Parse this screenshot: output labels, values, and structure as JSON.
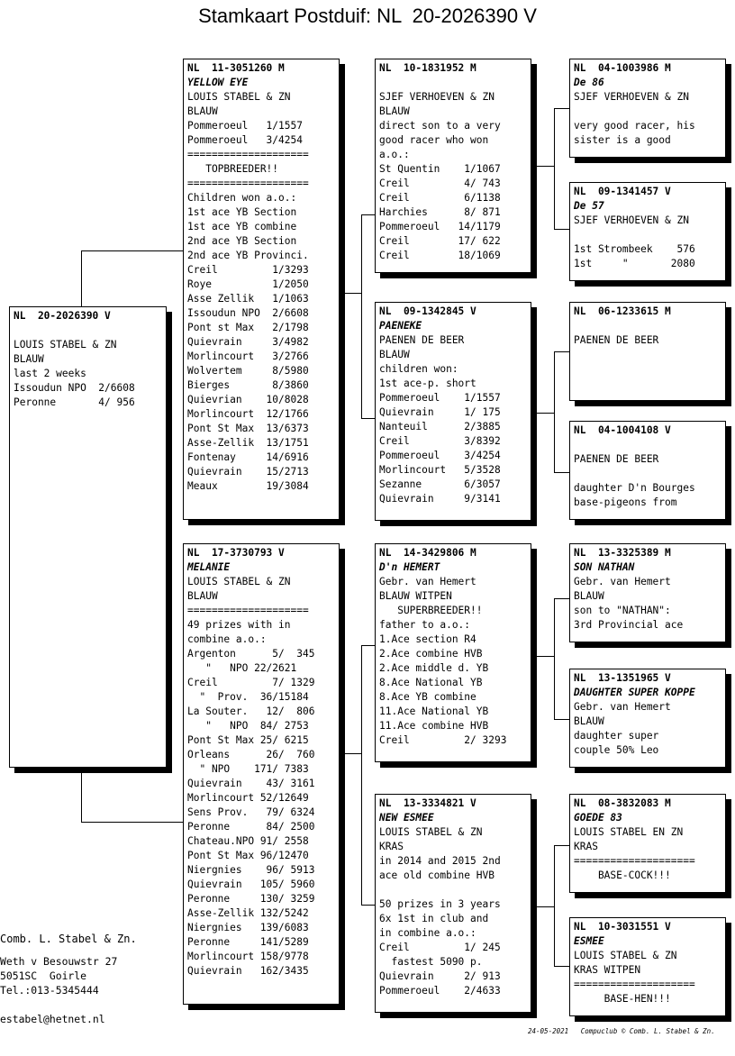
{
  "title": "Stamkaart Postduif: NL  20-2026390 V",
  "cards": {
    "main": [
      {
        "t": "h",
        "v": "NL  20-2026390 V"
      },
      {
        "t": "n",
        "v": ""
      },
      {
        "t": "n",
        "v": "LOUIS STABEL & ZN"
      },
      {
        "t": "n",
        "v": "BLAUW"
      },
      {
        "t": "n",
        "v": "last 2 weeks"
      },
      {
        "t": "n",
        "v": "Issoudun NPO  2/6608"
      },
      {
        "t": "n",
        "v": "Peronne       4/ 956"
      }
    ],
    "father": [
      {
        "t": "h",
        "v": "NL  11-3051260 M"
      },
      {
        "t": "i",
        "v": "YELLOW EYE"
      },
      {
        "t": "n",
        "v": "LOUIS STABEL & ZN"
      },
      {
        "t": "n",
        "v": "BLAUW"
      },
      {
        "t": "n",
        "v": "Pommeroeul   1/1557"
      },
      {
        "t": "n",
        "v": "Pommeroeul   3/4254"
      },
      {
        "t": "n",
        "v": "===================="
      },
      {
        "t": "n",
        "v": "   TOPBREEDER!!"
      },
      {
        "t": "n",
        "v": "===================="
      },
      {
        "t": "n",
        "v": "Children won a.o.:"
      },
      {
        "t": "n",
        "v": "1st ace YB Section"
      },
      {
        "t": "n",
        "v": "1st ace YB combine"
      },
      {
        "t": "n",
        "v": "2nd ace YB Section"
      },
      {
        "t": "n",
        "v": "2nd ace YB Provinci."
      },
      {
        "t": "n",
        "v": "Creil         1/3293"
      },
      {
        "t": "n",
        "v": "Roye          1/2050"
      },
      {
        "t": "n",
        "v": "Asse Zellik   1/1063"
      },
      {
        "t": "n",
        "v": "Issoudun NPO  2/6608"
      },
      {
        "t": "n",
        "v": "Pont st Max   2/1798"
      },
      {
        "t": "n",
        "v": "Quievrain     3/4982"
      },
      {
        "t": "n",
        "v": "Morlincourt   3/2766"
      },
      {
        "t": "n",
        "v": "Wolvertem     8/5980"
      },
      {
        "t": "n",
        "v": "Bierges       8/3860"
      },
      {
        "t": "n",
        "v": "Quievrian    10/8028"
      },
      {
        "t": "n",
        "v": "Morlincourt  12/1766"
      },
      {
        "t": "n",
        "v": "Pont St Max  13/6373"
      },
      {
        "t": "n",
        "v": "Asse-Zellik  13/1751"
      },
      {
        "t": "n",
        "v": "Fontenay     14/6916"
      },
      {
        "t": "n",
        "v": "Quievrain    15/2713"
      },
      {
        "t": "n",
        "v": "Meaux        19/3084"
      }
    ],
    "mother": [
      {
        "t": "h",
        "v": "NL  17-3730793 V"
      },
      {
        "t": "i",
        "v": "MELANIE"
      },
      {
        "t": "n",
        "v": "LOUIS STABEL & ZN"
      },
      {
        "t": "n",
        "v": "BLAUW"
      },
      {
        "t": "n",
        "v": "===================="
      },
      {
        "t": "n",
        "v": "49 prizes with in"
      },
      {
        "t": "n",
        "v": "combine a.o.:"
      },
      {
        "t": "n",
        "v": "Argenton      5/  345"
      },
      {
        "t": "n",
        "v": "   \"   NPO 22/2621"
      },
      {
        "t": "n",
        "v": "Creil         7/ 1329"
      },
      {
        "t": "n",
        "v": "  \"  Prov.  36/15184"
      },
      {
        "t": "n",
        "v": "La Souter.   12/  806"
      },
      {
        "t": "n",
        "v": "   \"   NPO  84/ 2753"
      },
      {
        "t": "n",
        "v": "Pont St Max 25/ 6215"
      },
      {
        "t": "n",
        "v": "Orleans      26/  760"
      },
      {
        "t": "n",
        "v": "  \" NPO    171/ 7383"
      },
      {
        "t": "n",
        "v": "Quievrain    43/ 3161"
      },
      {
        "t": "n",
        "v": "Morlincourt 52/12649"
      },
      {
        "t": "n",
        "v": "Sens Prov.   79/ 6324"
      },
      {
        "t": "n",
        "v": "Peronne      84/ 2500"
      },
      {
        "t": "n",
        "v": "Chateau.NPO 91/ 2558"
      },
      {
        "t": "n",
        "v": "Pont St Max 96/12470"
      },
      {
        "t": "n",
        "v": "Niergnies    96/ 5913"
      },
      {
        "t": "n",
        "v": "Quievrain   105/ 5960"
      },
      {
        "t": "n",
        "v": "Peronne     130/ 3259"
      },
      {
        "t": "n",
        "v": "Asse-Zellik 132/5242"
      },
      {
        "t": "n",
        "v": "Niergnies   139/6083"
      },
      {
        "t": "n",
        "v": "Peronne     141/5289"
      },
      {
        "t": "n",
        "v": "Morlincourt 158/9778"
      },
      {
        "t": "n",
        "v": "Quievrain   162/3435"
      }
    ],
    "ff": [
      {
        "t": "h",
        "v": "NL  10-1831952 M"
      },
      {
        "t": "n",
        "v": ""
      },
      {
        "t": "n",
        "v": "SJEF VERHOEVEN & ZN"
      },
      {
        "t": "n",
        "v": "BLAUW"
      },
      {
        "t": "n",
        "v": "direct son to a very"
      },
      {
        "t": "n",
        "v": "good racer who won"
      },
      {
        "t": "n",
        "v": "a.o.:"
      },
      {
        "t": "n",
        "v": "St Quentin    1/1067"
      },
      {
        "t": "n",
        "v": "Creil         4/ 743"
      },
      {
        "t": "n",
        "v": "Creil         6/1138"
      },
      {
        "t": "n",
        "v": "Harchies      8/ 871"
      },
      {
        "t": "n",
        "v": "Pommeroeul   14/1179"
      },
      {
        "t": "n",
        "v": "Creil        17/ 622"
      },
      {
        "t": "n",
        "v": "Creil        18/1069"
      }
    ],
    "fm": [
      {
        "t": "h",
        "v": "NL  09-1342845 V"
      },
      {
        "t": "i",
        "v": "PAENEKE"
      },
      {
        "t": "n",
        "v": "PAENEN DE BEER"
      },
      {
        "t": "n",
        "v": "BLAUW"
      },
      {
        "t": "n",
        "v": "children won:"
      },
      {
        "t": "n",
        "v": "1st ace-p. short"
      },
      {
        "t": "n",
        "v": "Pommeroeul    1/1557"
      },
      {
        "t": "n",
        "v": "Quievrain     1/ 175"
      },
      {
        "t": "n",
        "v": "Nanteuil      2/3885"
      },
      {
        "t": "n",
        "v": "Creil         3/8392"
      },
      {
        "t": "n",
        "v": "Pommeroeul    3/4254"
      },
      {
        "t": "n",
        "v": "Morlincourt   5/3528"
      },
      {
        "t": "n",
        "v": "Sezanne       6/3057"
      },
      {
        "t": "n",
        "v": "Quievrain     9/3141"
      }
    ],
    "mf": [
      {
        "t": "h",
        "v": "NL  14-3429806 M"
      },
      {
        "t": "i",
        "v": "D'n HEMERT"
      },
      {
        "t": "n",
        "v": "Gebr. van Hemert"
      },
      {
        "t": "n",
        "v": "BLAUW WITPEN"
      },
      {
        "t": "n",
        "v": "   SUPERBREEDER!!"
      },
      {
        "t": "n",
        "v": "father to a.o.:"
      },
      {
        "t": "n",
        "v": "1.Ace section R4"
      },
      {
        "t": "n",
        "v": "2.Ace combine HVB"
      },
      {
        "t": "n",
        "v": "2.Ace middle d. YB"
      },
      {
        "t": "n",
        "v": "8.Ace National YB"
      },
      {
        "t": "n",
        "v": "8.Ace YB combine"
      },
      {
        "t": "n",
        "v": "11.Ace National YB"
      },
      {
        "t": "n",
        "v": "11.Ace combine HVB"
      },
      {
        "t": "n",
        "v": "Creil         2/ 3293"
      }
    ],
    "mm": [
      {
        "t": "h",
        "v": "NL  13-3334821 V"
      },
      {
        "t": "i",
        "v": "NEW ESMEE"
      },
      {
        "t": "n",
        "v": "LOUIS STABEL & ZN"
      },
      {
        "t": "n",
        "v": "KRAS"
      },
      {
        "t": "n",
        "v": "in 2014 and 2015 2nd"
      },
      {
        "t": "n",
        "v": "ace old combine HVB"
      },
      {
        "t": "n",
        "v": ""
      },
      {
        "t": "n",
        "v": "50 prizes in 3 years"
      },
      {
        "t": "n",
        "v": "6x 1st in club and"
      },
      {
        "t": "n",
        "v": "in combine a.o.:"
      },
      {
        "t": "n",
        "v": "Creil         1/ 245"
      },
      {
        "t": "n",
        "v": "  fastest 5090 p."
      },
      {
        "t": "n",
        "v": "Quievrain     2/ 913"
      },
      {
        "t": "n",
        "v": "Pommeroeul    2/4633"
      }
    ],
    "fff": [
      {
        "t": "h",
        "v": "NL  04-1003986 M"
      },
      {
        "t": "i",
        "v": "De 86"
      },
      {
        "t": "n",
        "v": "SJEF VERHOEVEN & ZN"
      },
      {
        "t": "n",
        "v": ""
      },
      {
        "t": "n",
        "v": "very good racer, his"
      },
      {
        "t": "n",
        "v": "sister is a good"
      }
    ],
    "ffm": [
      {
        "t": "h",
        "v": "NL  09-1341457 V"
      },
      {
        "t": "i",
        "v": "De 57"
      },
      {
        "t": "n",
        "v": "SJEF VERHOEVEN & ZN"
      },
      {
        "t": "n",
        "v": ""
      },
      {
        "t": "n",
        "v": "1st Strombeek    576"
      },
      {
        "t": "n",
        "v": "1st     \"       2080"
      }
    ],
    "fmf": [
      {
        "t": "h",
        "v": "NL  06-1233615 M"
      },
      {
        "t": "n",
        "v": ""
      },
      {
        "t": "n",
        "v": "PAENEN DE BEER"
      }
    ],
    "fmm": [
      {
        "t": "h",
        "v": "NL  04-1004108 V"
      },
      {
        "t": "n",
        "v": ""
      },
      {
        "t": "n",
        "v": "PAENEN DE BEER"
      },
      {
        "t": "n",
        "v": ""
      },
      {
        "t": "n",
        "v": "daughter D'n Bourges"
      },
      {
        "t": "n",
        "v": "base-pigeons from"
      }
    ],
    "mff": [
      {
        "t": "h",
        "v": "NL  13-3325389 M"
      },
      {
        "t": "i",
        "v": "SON NATHAN"
      },
      {
        "t": "n",
        "v": "Gebr. van Hemert"
      },
      {
        "t": "n",
        "v": "BLAUW"
      },
      {
        "t": "n",
        "v": "son to \"NATHAN\":"
      },
      {
        "t": "n",
        "v": "3rd Provincial ace"
      }
    ],
    "mfm": [
      {
        "t": "h",
        "v": "NL  13-1351965 V"
      },
      {
        "t": "i",
        "v": "DAUGHTER SUPER KOPPE"
      },
      {
        "t": "n",
        "v": "Gebr. van Hemert"
      },
      {
        "t": "n",
        "v": "BLAUW"
      },
      {
        "t": "n",
        "v": "daughter super"
      },
      {
        "t": "n",
        "v": "couple 50% Leo"
      }
    ],
    "mmf": [
      {
        "t": "h",
        "v": "NL  08-3832083 M"
      },
      {
        "t": "i",
        "v": "GOEDE 83"
      },
      {
        "t": "n",
        "v": "LOUIS STABEL EN ZN"
      },
      {
        "t": "n",
        "v": "KRAS"
      },
      {
        "t": "n",
        "v": "===================="
      },
      {
        "t": "n",
        "v": "    BASE-COCK!!!"
      }
    ],
    "mmm": [
      {
        "t": "h",
        "v": "NL  10-3031551 V"
      },
      {
        "t": "i",
        "v": "ESMEE"
      },
      {
        "t": "n",
        "v": "LOUIS STABEL & ZN"
      },
      {
        "t": "n",
        "v": "KRAS WITPEN"
      },
      {
        "t": "n",
        "v": "===================="
      },
      {
        "t": "n",
        "v": "     BASE-HEN!!!"
      }
    ]
  },
  "address": {
    "name": "Comb. L. Stabel & Zn.",
    "street": "Weth v Besouwstr 27",
    "city": "5051SC  Goirle",
    "tel": "Tel.:013-5345444",
    "email": "estabel@hetnet.nl"
  },
  "footer": "24-05-2021   Compuclub © Comb. L. Stabel & Zn."
}
